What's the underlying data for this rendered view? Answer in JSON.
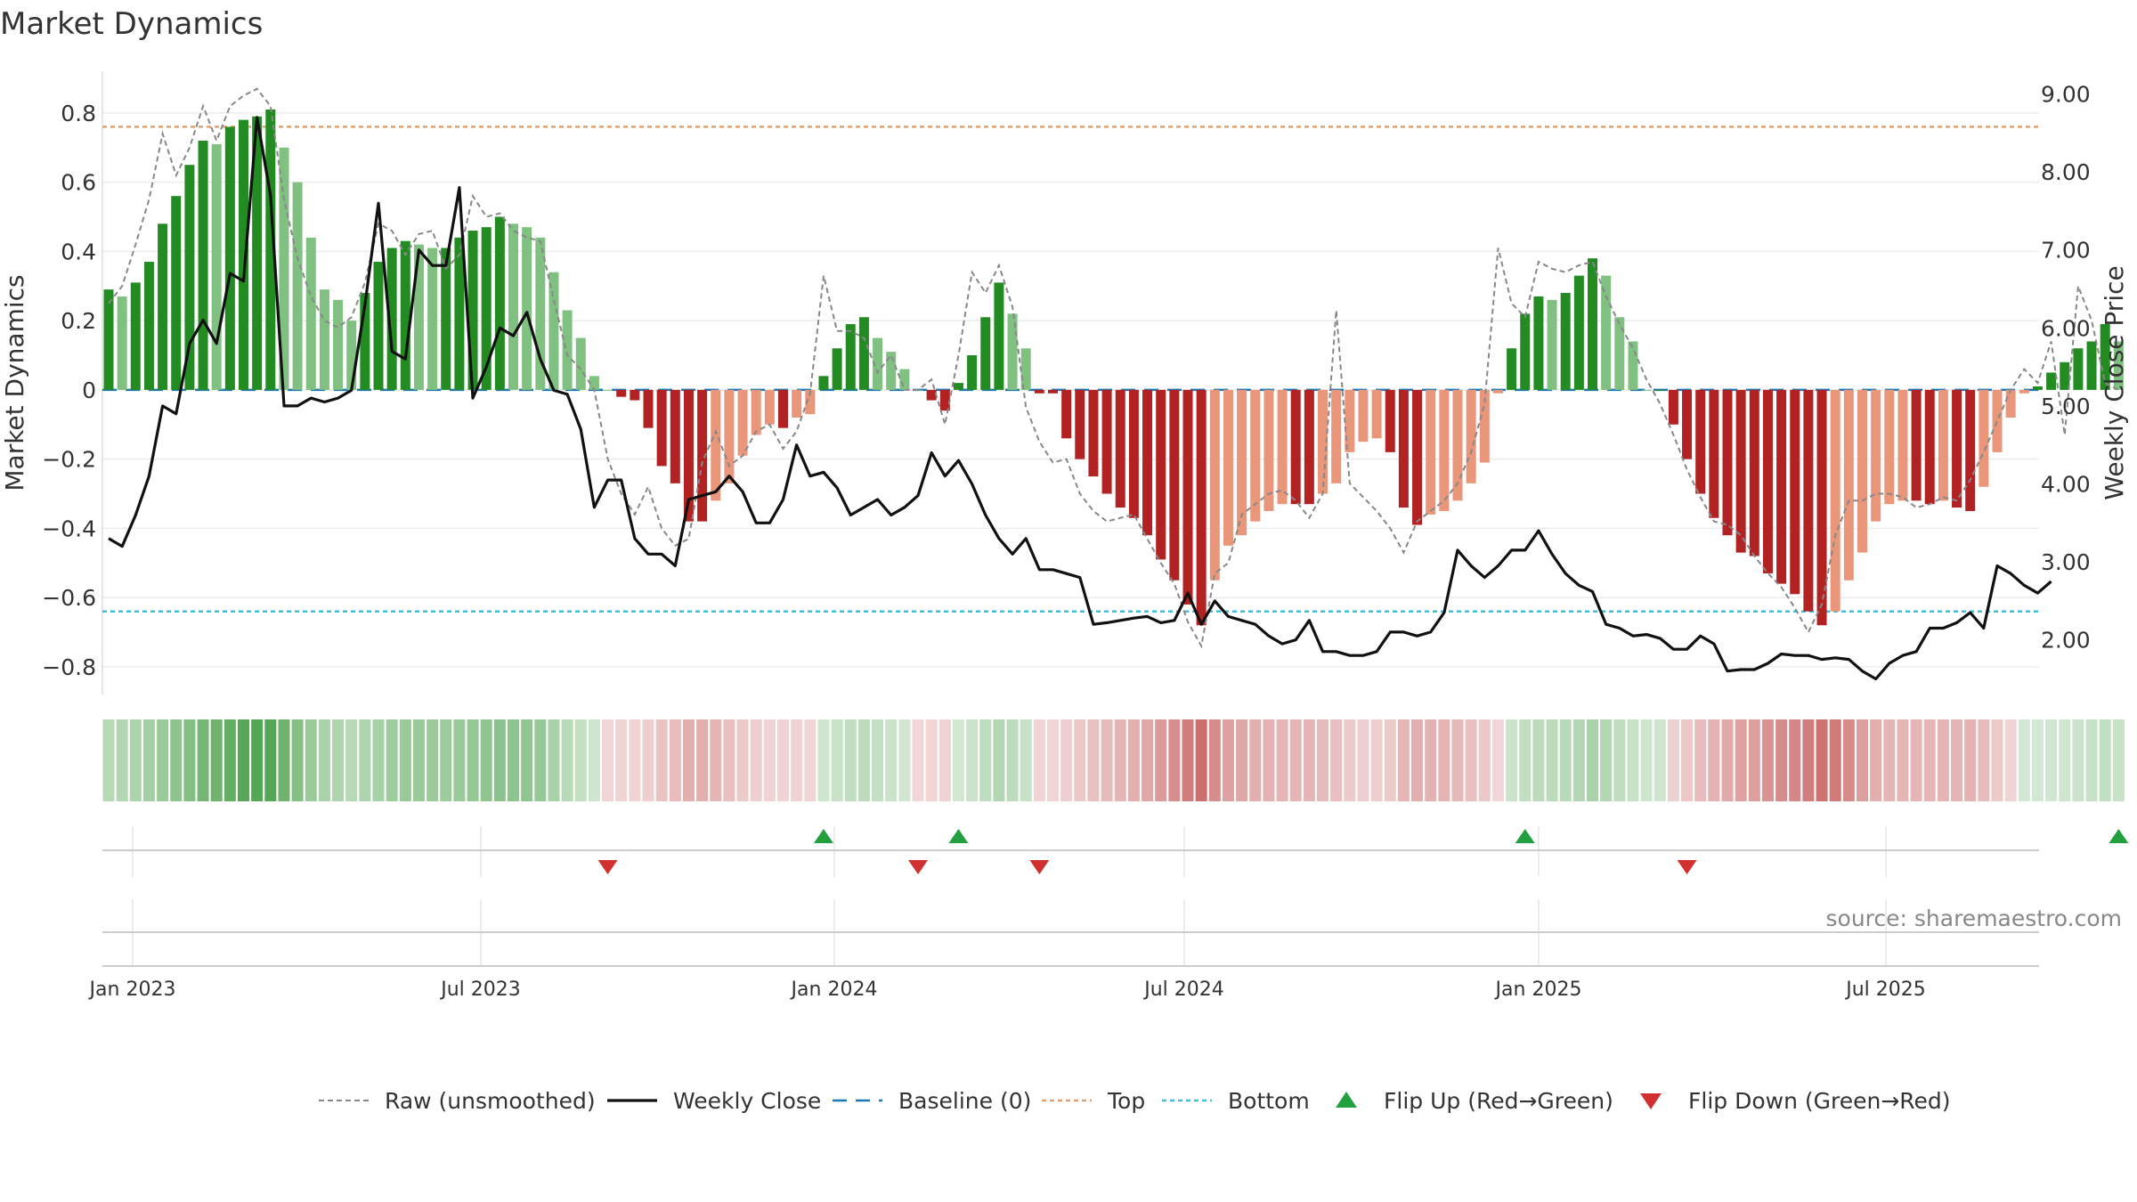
{
  "chart_data": {
    "type": "bar",
    "title": "Market Dynamics",
    "ylabel": "Market Dynamics",
    "y2label": "Weekly Close Price",
    "ylim": [
      -0.88,
      0.9
    ],
    "y2lim": [
      1.3,
      9.2
    ],
    "x_ticks": [
      "Jan 2023",
      "Jul 2023",
      "Jan 2024",
      "Jul 2024",
      "Jan 2025",
      "Jul 2025"
    ],
    "y_ticks": [
      "0.8",
      "0.6",
      "0.4",
      "0.2",
      "0",
      "−0.2",
      "−0.4",
      "−0.6",
      "−0.8"
    ],
    "y2_ticks": [
      "9.00",
      "8.00",
      "7.00",
      "6.00",
      "5.00",
      "4.00",
      "3.00",
      "2.00"
    ],
    "top_level": 0.76,
    "bottom_level": -0.64,
    "grid": true,
    "legend_position": "bottom",
    "series": [
      {
        "name": "Market Dynamics",
        "values": [
          0.29,
          0.27,
          0.31,
          0.37,
          0.48,
          0.56,
          0.65,
          0.72,
          0.71,
          0.76,
          0.78,
          0.79,
          0.81,
          0.7,
          0.6,
          0.44,
          0.29,
          0.26,
          0.2,
          0.28,
          0.37,
          0.41,
          0.43,
          0.42,
          0.41,
          0.41,
          0.44,
          0.46,
          0.47,
          0.5,
          0.48,
          0.47,
          0.44,
          0.34,
          0.23,
          0.15,
          0.04,
          0,
          -0.02,
          -0.03,
          -0.11,
          -0.22,
          -0.27,
          -0.38,
          -0.38,
          -0.32,
          -0.27,
          -0.19,
          -0.13,
          -0.1,
          -0.11,
          -0.08,
          -0.07,
          0.04,
          0.12,
          0.19,
          0.21,
          0.15,
          0.11,
          0.06,
          0,
          -0.03,
          -0.06,
          0.02,
          0.1,
          0.21,
          0.31,
          0.22,
          0.12,
          -0.01,
          -0.01,
          -0.14,
          -0.2,
          -0.25,
          -0.3,
          -0.34,
          -0.37,
          -0.42,
          -0.49,
          -0.55,
          -0.62,
          -0.68,
          -0.55,
          -0.45,
          -0.42,
          -0.38,
          -0.35,
          -0.33,
          -0.33,
          -0.33,
          -0.3,
          -0.27,
          -0.18,
          -0.15,
          -0.14,
          -0.18,
          -0.34,
          -0.39,
          -0.36,
          -0.35,
          -0.32,
          -0.27,
          -0.21,
          -0.01,
          0.12,
          0.22,
          0.27,
          0.26,
          0.28,
          0.33,
          0.38,
          0.33,
          0.21,
          0.14,
          0,
          0,
          -0.1,
          -0.2,
          -0.3,
          -0.37,
          -0.42,
          -0.47,
          -0.48,
          -0.53,
          -0.56,
          -0.59,
          -0.64,
          -0.68,
          -0.64,
          -0.55,
          -0.47,
          -0.38,
          -0.33,
          -0.32,
          -0.32,
          -0.33,
          -0.32,
          -0.34,
          -0.35,
          -0.28,
          -0.18,
          -0.08,
          -0.01,
          0.01,
          0.05,
          0.08,
          0.12,
          0.14,
          0.19,
          0.14
        ]
      },
      {
        "name": "Raw (unsmoothed)",
        "values": [
          0.25,
          0.3,
          0.42,
          0.55,
          0.74,
          0.62,
          0.7,
          0.82,
          0.72,
          0.82,
          0.85,
          0.87,
          0.82,
          0.55,
          0.38,
          0.27,
          0.2,
          0.18,
          0.21,
          0.31,
          0.48,
          0.46,
          0.39,
          0.45,
          0.46,
          0.35,
          0.39,
          0.56,
          0.5,
          0.51,
          0.46,
          0.44,
          0.43,
          0.26,
          0.1,
          0.06,
          0,
          -0.2,
          -0.3,
          -0.36,
          -0.28,
          -0.4,
          -0.45,
          -0.43,
          -0.21,
          -0.12,
          -0.22,
          -0.19,
          -0.12,
          -0.1,
          -0.17,
          -0.12,
          -0.01,
          0.33,
          0.17,
          0.17,
          0.15,
          0.05,
          0.1,
          0,
          0,
          0.03,
          -0.1,
          0.1,
          0.34,
          0.28,
          0.36,
          0.24,
          -0.05,
          -0.15,
          -0.21,
          -0.2,
          -0.3,
          -0.35,
          -0.38,
          -0.37,
          -0.36,
          -0.43,
          -0.5,
          -0.56,
          -0.67,
          -0.74,
          -0.53,
          -0.5,
          -0.36,
          -0.33,
          -0.3,
          -0.29,
          -0.32,
          -0.37,
          -0.3,
          0.23,
          -0.27,
          -0.31,
          -0.35,
          -0.4,
          -0.47,
          -0.38,
          -0.35,
          -0.32,
          -0.27,
          -0.18,
          -0.04,
          0.41,
          0.25,
          0.21,
          0.37,
          0.35,
          0.34,
          0.36,
          0.37,
          0.27,
          0.19,
          0.12,
          0.03,
          -0.04,
          -0.13,
          -0.23,
          -0.31,
          -0.38,
          -0.39,
          -0.42,
          -0.48,
          -0.53,
          -0.57,
          -0.63,
          -0.7,
          -0.62,
          -0.42,
          -0.32,
          -0.32,
          -0.3,
          -0.3,
          -0.31,
          -0.34,
          -0.33,
          -0.31,
          -0.32,
          -0.26,
          -0.18,
          -0.09,
          0,
          0.06,
          0.02,
          0.14,
          -0.13,
          0.3,
          0.2,
          0.02,
          0
        ]
      },
      {
        "name": "Weekly Close",
        "values": [
          3.3,
          3.2,
          3.6,
          4.1,
          5,
          4.9,
          5.8,
          6.1,
          5.8,
          6.7,
          6.6,
          8.7,
          7.7,
          5,
          5,
          5.1,
          5.05,
          5.1,
          5.2,
          6.3,
          7.6,
          5.7,
          5.6,
          7,
          6.8,
          6.8,
          7.8,
          5.1,
          5.5,
          6,
          5.9,
          6.2,
          5.6,
          5.2,
          5.15,
          4.7,
          3.7,
          4.05,
          4.05,
          3.3,
          3.1,
          3.1,
          2.95,
          3.8,
          3.85,
          3.9,
          4.1,
          3.9,
          3.5,
          3.5,
          3.8,
          4.5,
          4.1,
          4.15,
          3.95,
          3.6,
          3.7,
          3.8,
          3.6,
          3.7,
          3.85,
          4.4,
          4.1,
          4.3,
          4,
          3.6,
          3.3,
          3.1,
          3.3,
          2.9,
          2.9,
          2.85,
          2.8,
          2.2,
          2.22,
          2.25,
          2.28,
          2.3,
          2.22,
          2.25,
          2.6,
          2.2,
          2.5,
          2.3,
          2.25,
          2.2,
          2.05,
          1.95,
          2,
          2.25,
          1.85,
          1.85,
          1.8,
          1.8,
          1.85,
          2.1,
          2.1,
          2.05,
          2.1,
          2.35,
          3.15,
          2.95,
          2.8,
          2.95,
          3.15,
          3.15,
          3.4,
          3.1,
          2.85,
          2.7,
          2.62,
          2.2,
          2.15,
          2.05,
          2.07,
          2.02,
          1.88,
          1.88,
          2.05,
          1.95,
          1.6,
          1.62,
          1.62,
          1.7,
          1.82,
          1.8,
          1.8,
          1.75,
          1.77,
          1.75,
          1.6,
          1.5,
          1.7,
          1.8,
          1.85,
          2.15,
          2.15,
          2.22,
          2.35,
          2.15,
          2.95,
          2.85,
          2.7,
          2.6,
          2.75
        ]
      }
    ],
    "regime_strip": [
      0.47,
      0.5,
      0.53,
      0.57,
      0.62,
      0.67,
      0.72,
      0.77,
      0.79,
      0.83,
      0.87,
      0.88,
      0.88,
      0.79,
      0.71,
      0.62,
      0.54,
      0.51,
      0.48,
      0.51,
      0.56,
      0.6,
      0.62,
      0.62,
      0.61,
      0.6,
      0.62,
      0.64,
      0.66,
      0.68,
      0.67,
      0.66,
      0.63,
      0.55,
      0.46,
      0.39,
      0.3,
      -0.22,
      -0.24,
      -0.25,
      -0.3,
      -0.38,
      -0.44,
      -0.52,
      -0.53,
      -0.47,
      -0.42,
      -0.34,
      -0.29,
      -0.26,
      -0.26,
      -0.24,
      -0.23,
      0.3,
      0.36,
      0.42,
      0.44,
      0.38,
      0.34,
      0.28,
      -0.2,
      -0.22,
      -0.24,
      0.26,
      0.33,
      0.42,
      0.5,
      0.43,
      0.35,
      -0.22,
      -0.22,
      -0.3,
      -0.35,
      -0.4,
      -0.45,
      -0.48,
      -0.51,
      -0.56,
      -0.62,
      -0.67,
      -0.74,
      -0.79,
      -0.68,
      -0.59,
      -0.56,
      -0.52,
      -0.5,
      -0.48,
      -0.48,
      -0.48,
      -0.45,
      -0.42,
      -0.33,
      -0.3,
      -0.29,
      -0.33,
      -0.48,
      -0.53,
      -0.5,
      -0.49,
      -0.46,
      -0.42,
      -0.36,
      -0.2,
      0.33,
      0.41,
      0.45,
      0.45,
      0.46,
      0.5,
      0.54,
      0.5,
      0.42,
      0.36,
      0.3,
      0.3,
      -0.27,
      -0.35,
      -0.44,
      -0.5,
      -0.55,
      -0.59,
      -0.6,
      -0.65,
      -0.68,
      -0.7,
      -0.74,
      -0.78,
      -0.75,
      -0.68,
      -0.6,
      -0.52,
      -0.48,
      -0.47,
      -0.47,
      -0.48,
      -0.47,
      -0.49,
      -0.5,
      -0.43,
      -0.33,
      -0.24,
      0.24,
      0.25,
      0.28,
      0.3,
      0.33,
      0.35,
      0.4,
      0.36
    ],
    "flip_up_indices": [
      53,
      63,
      105,
      149
    ],
    "flip_down_indices": [
      37,
      60,
      69,
      117
    ],
    "annotation": "source: sharemaestro.com",
    "legend": [
      {
        "label": "Raw (unsmoothed)",
        "style": "dashed-gray"
      },
      {
        "label": "Weekly Close",
        "style": "solid-black"
      },
      {
        "label": "Baseline (0)",
        "style": "dashed-blue"
      },
      {
        "label": "Top",
        "style": "dotted-orange"
      },
      {
        "label": "Bottom",
        "style": "dotted-cyan"
      },
      {
        "label": "Flip Up (Red→Green)",
        "style": "triangle-up-green"
      },
      {
        "label": "Flip Down (Green→Red)",
        "style": "triangle-down-red"
      }
    ],
    "colors": {
      "green_strong": "#228b22",
      "green_light": "#80c080",
      "red_strong": "#b22222",
      "red_light": "#e9967a",
      "raw": "#888888",
      "close": "#111111",
      "baseline": "#1f77b4",
      "top": "#e0a070",
      "bottom": "#40c0d8",
      "flip_up": "#22a040",
      "flip_down": "#d03030"
    }
  }
}
